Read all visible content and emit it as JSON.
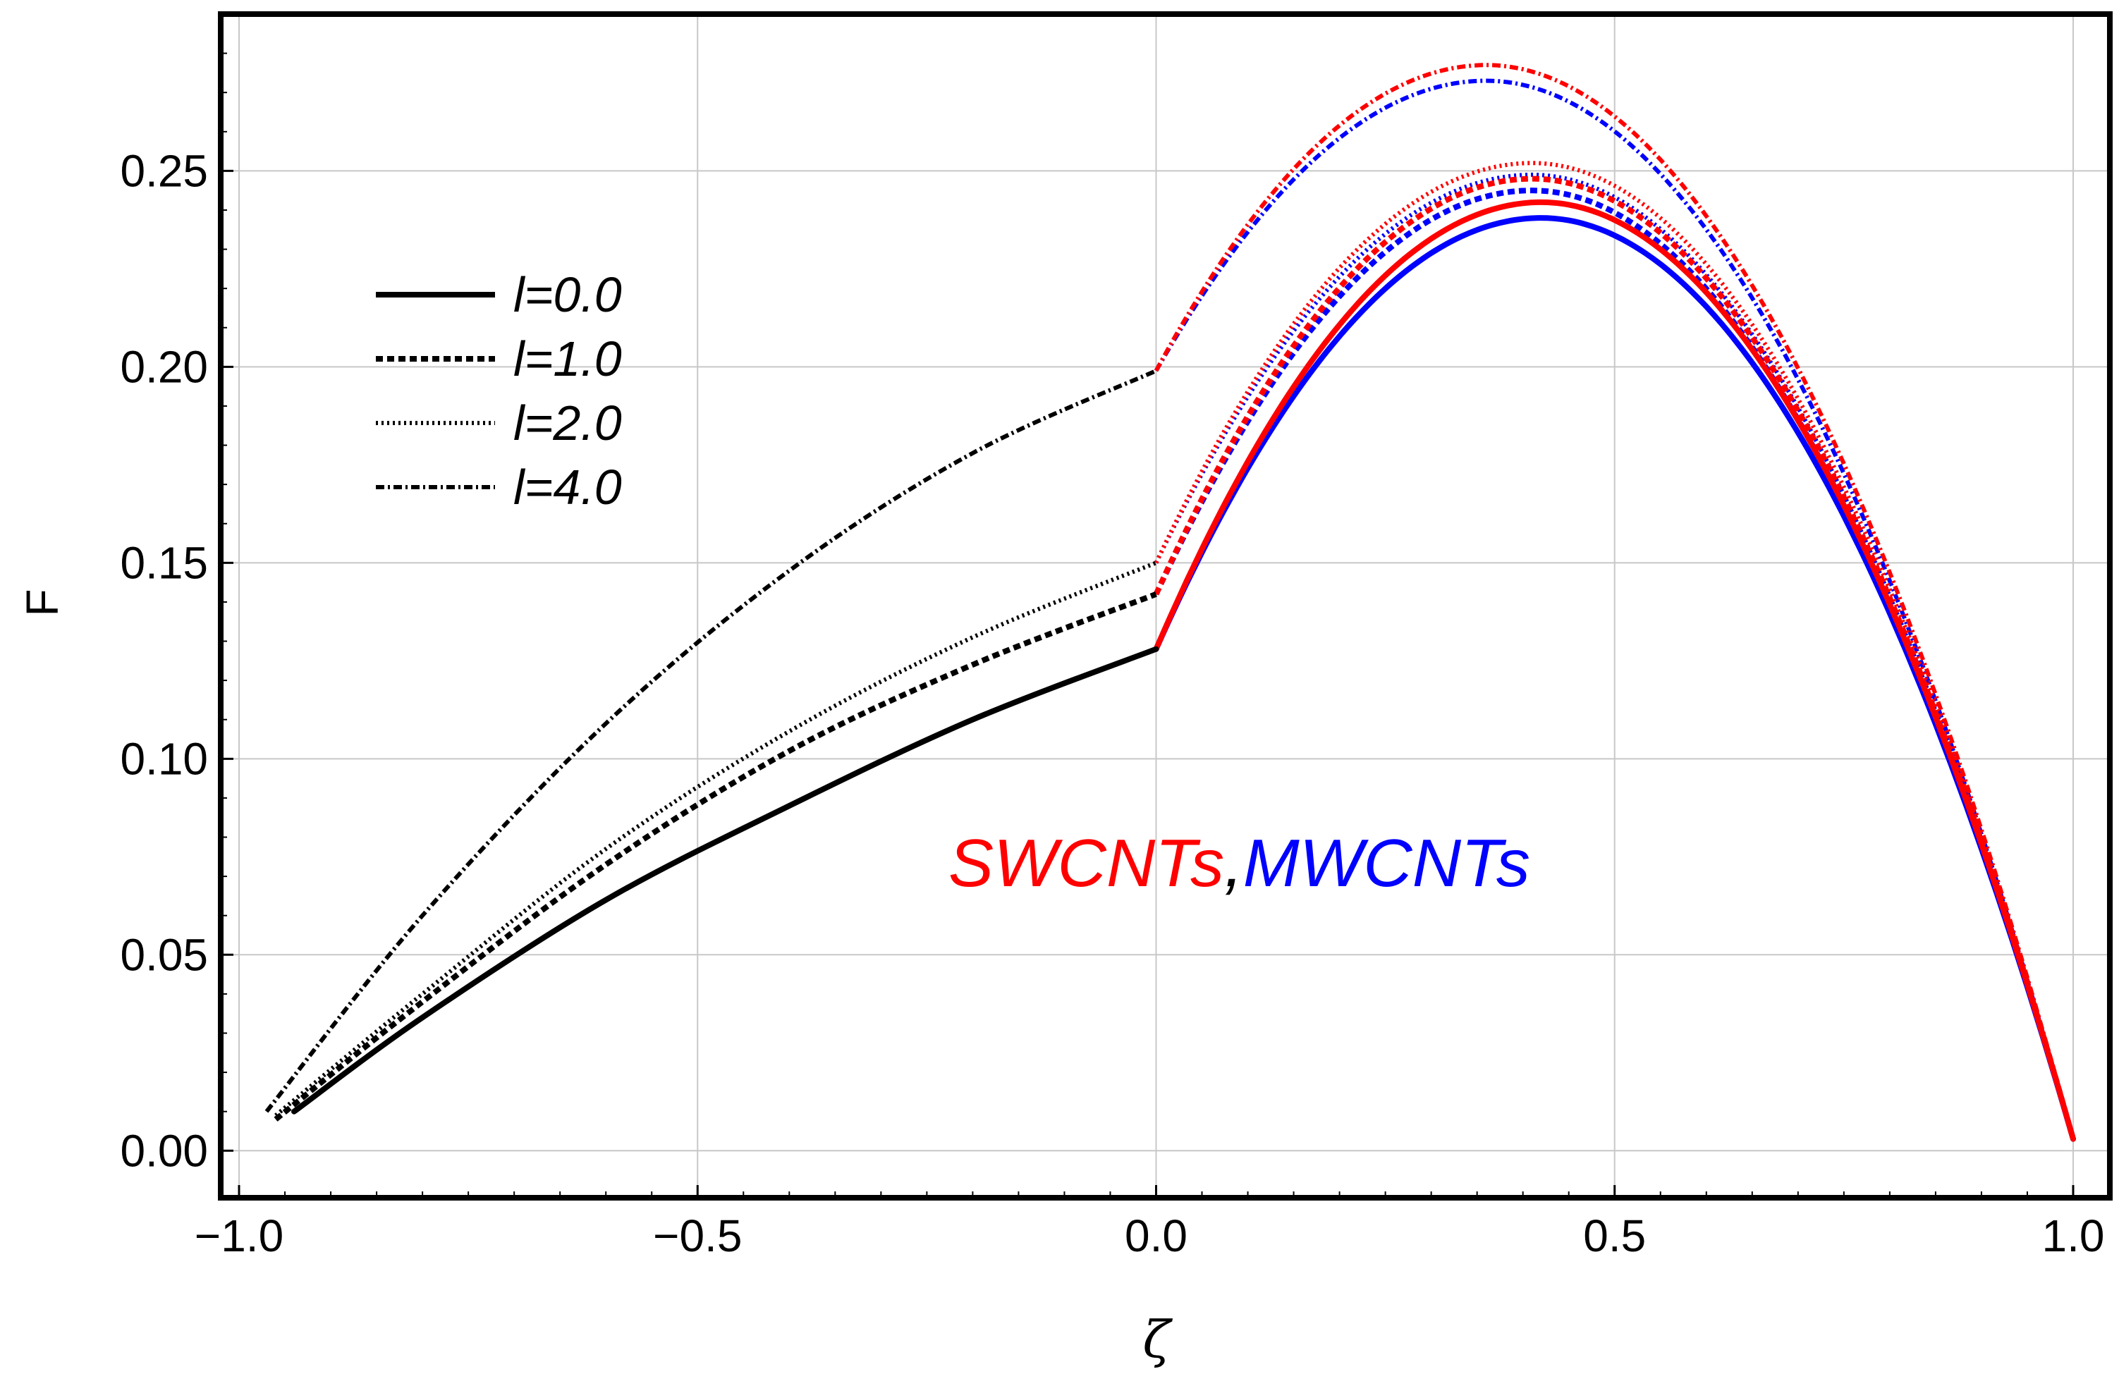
{
  "chart_data": {
    "type": "line",
    "xlabel": "ζ",
    "ylabel": "F",
    "xlim": [
      -1.02,
      1.04
    ],
    "ylim": [
      -0.012,
      0.29
    ],
    "xticks": [
      -1.0,
      -0.5,
      0.0,
      0.5,
      1.0
    ],
    "xtick_labels": [
      "−1.0",
      "−0.5",
      "0.0",
      "0.5",
      "1.0"
    ],
    "yticks": [
      0.0,
      0.05,
      0.1,
      0.15,
      0.2,
      0.25
    ],
    "ytick_labels": [
      "0.00",
      "0.05",
      "0.10",
      "0.15",
      "0.20",
      "0.25"
    ],
    "grid": true,
    "legend_position": "top-left",
    "legend": [
      {
        "label": "l=0.0",
        "style": "solid"
      },
      {
        "label": "l=1.0",
        "style": "dashed"
      },
      {
        "label": "l=2.0",
        "style": "dotted"
      },
      {
        "label": "l=4.0",
        "style": "dash-dot"
      }
    ],
    "annotation": {
      "parts": [
        {
          "text": "SWCNTs",
          "color": "#ff0000"
        },
        {
          "text": ",",
          "color": "#000000"
        },
        {
          "text": "MWCNTs",
          "color": "#0000ff"
        }
      ]
    },
    "colors": {
      "left": "#000000",
      "swcnt": "#ff0000",
      "mwcnt": "#0000ff"
    },
    "series": [
      {
        "name": "l=0.0 (left region)",
        "l": 0.0,
        "region": "left",
        "x0": -0.94,
        "x": [
          -0.94,
          -0.8,
          -0.6,
          -0.4,
          -0.2,
          0.0
        ],
        "y": [
          0.01,
          0.034,
          0.064,
          0.088,
          0.11,
          0.128
        ]
      },
      {
        "name": "l=1.0 (left region)",
        "l": 1.0,
        "region": "left",
        "x0": -0.96,
        "x": [
          -0.96,
          -0.8,
          -0.6,
          -0.4,
          -0.2,
          0.0
        ],
        "y": [
          0.008,
          0.038,
          0.073,
          0.102,
          0.124,
          0.142
        ]
      },
      {
        "name": "l=2.0 (left region)",
        "l": 2.0,
        "region": "left",
        "x0": -0.96,
        "x": [
          -0.96,
          -0.8,
          -0.6,
          -0.4,
          -0.2,
          0.0
        ],
        "y": [
          0.009,
          0.04,
          0.077,
          0.107,
          0.131,
          0.15
        ]
      },
      {
        "name": "l=4.0 (left region)",
        "l": 4.0,
        "region": "left",
        "x0": -0.97,
        "x": [
          -0.97,
          -0.8,
          -0.6,
          -0.4,
          -0.2,
          0.0
        ],
        "y": [
          0.01,
          0.06,
          0.109,
          0.148,
          0.178,
          0.199
        ]
      },
      {
        "name": "SWCNTs l=0.0",
        "l": 0.0,
        "region": "right",
        "material": "SWCNT",
        "f0": 0.128,
        "peak_x": 0.42,
        "peak_y": 0.242
      },
      {
        "name": "MWCNTs l=0.0",
        "l": 0.0,
        "region": "right",
        "material": "MWCNT",
        "f0": 0.128,
        "peak_x": 0.42,
        "peak_y": 0.238
      },
      {
        "name": "SWCNTs l=1.0",
        "l": 1.0,
        "region": "right",
        "material": "SWCNT",
        "f0": 0.142,
        "peak_x": 0.41,
        "peak_y": 0.248
      },
      {
        "name": "MWCNTs l=1.0",
        "l": 1.0,
        "region": "right",
        "material": "MWCNT",
        "f0": 0.142,
        "peak_x": 0.41,
        "peak_y": 0.245
      },
      {
        "name": "SWCNTs l=2.0",
        "l": 2.0,
        "region": "right",
        "material": "SWCNT",
        "f0": 0.15,
        "peak_x": 0.41,
        "peak_y": 0.252
      },
      {
        "name": "MWCNTs l=2.0",
        "l": 2.0,
        "region": "right",
        "material": "MWCNT",
        "f0": 0.15,
        "peak_x": 0.41,
        "peak_y": 0.249
      },
      {
        "name": "SWCNTs l=4.0",
        "l": 4.0,
        "region": "right",
        "material": "SWCNT",
        "f0": 0.199,
        "peak_x": 0.36,
        "peak_y": 0.277
      },
      {
        "name": "MWCNTs l=4.0",
        "l": 4.0,
        "region": "right",
        "material": "MWCNT",
        "f0": 0.199,
        "peak_x": 0.36,
        "peak_y": 0.273
      }
    ],
    "right_end": {
      "x": 1.0,
      "y": 0.003
    }
  }
}
